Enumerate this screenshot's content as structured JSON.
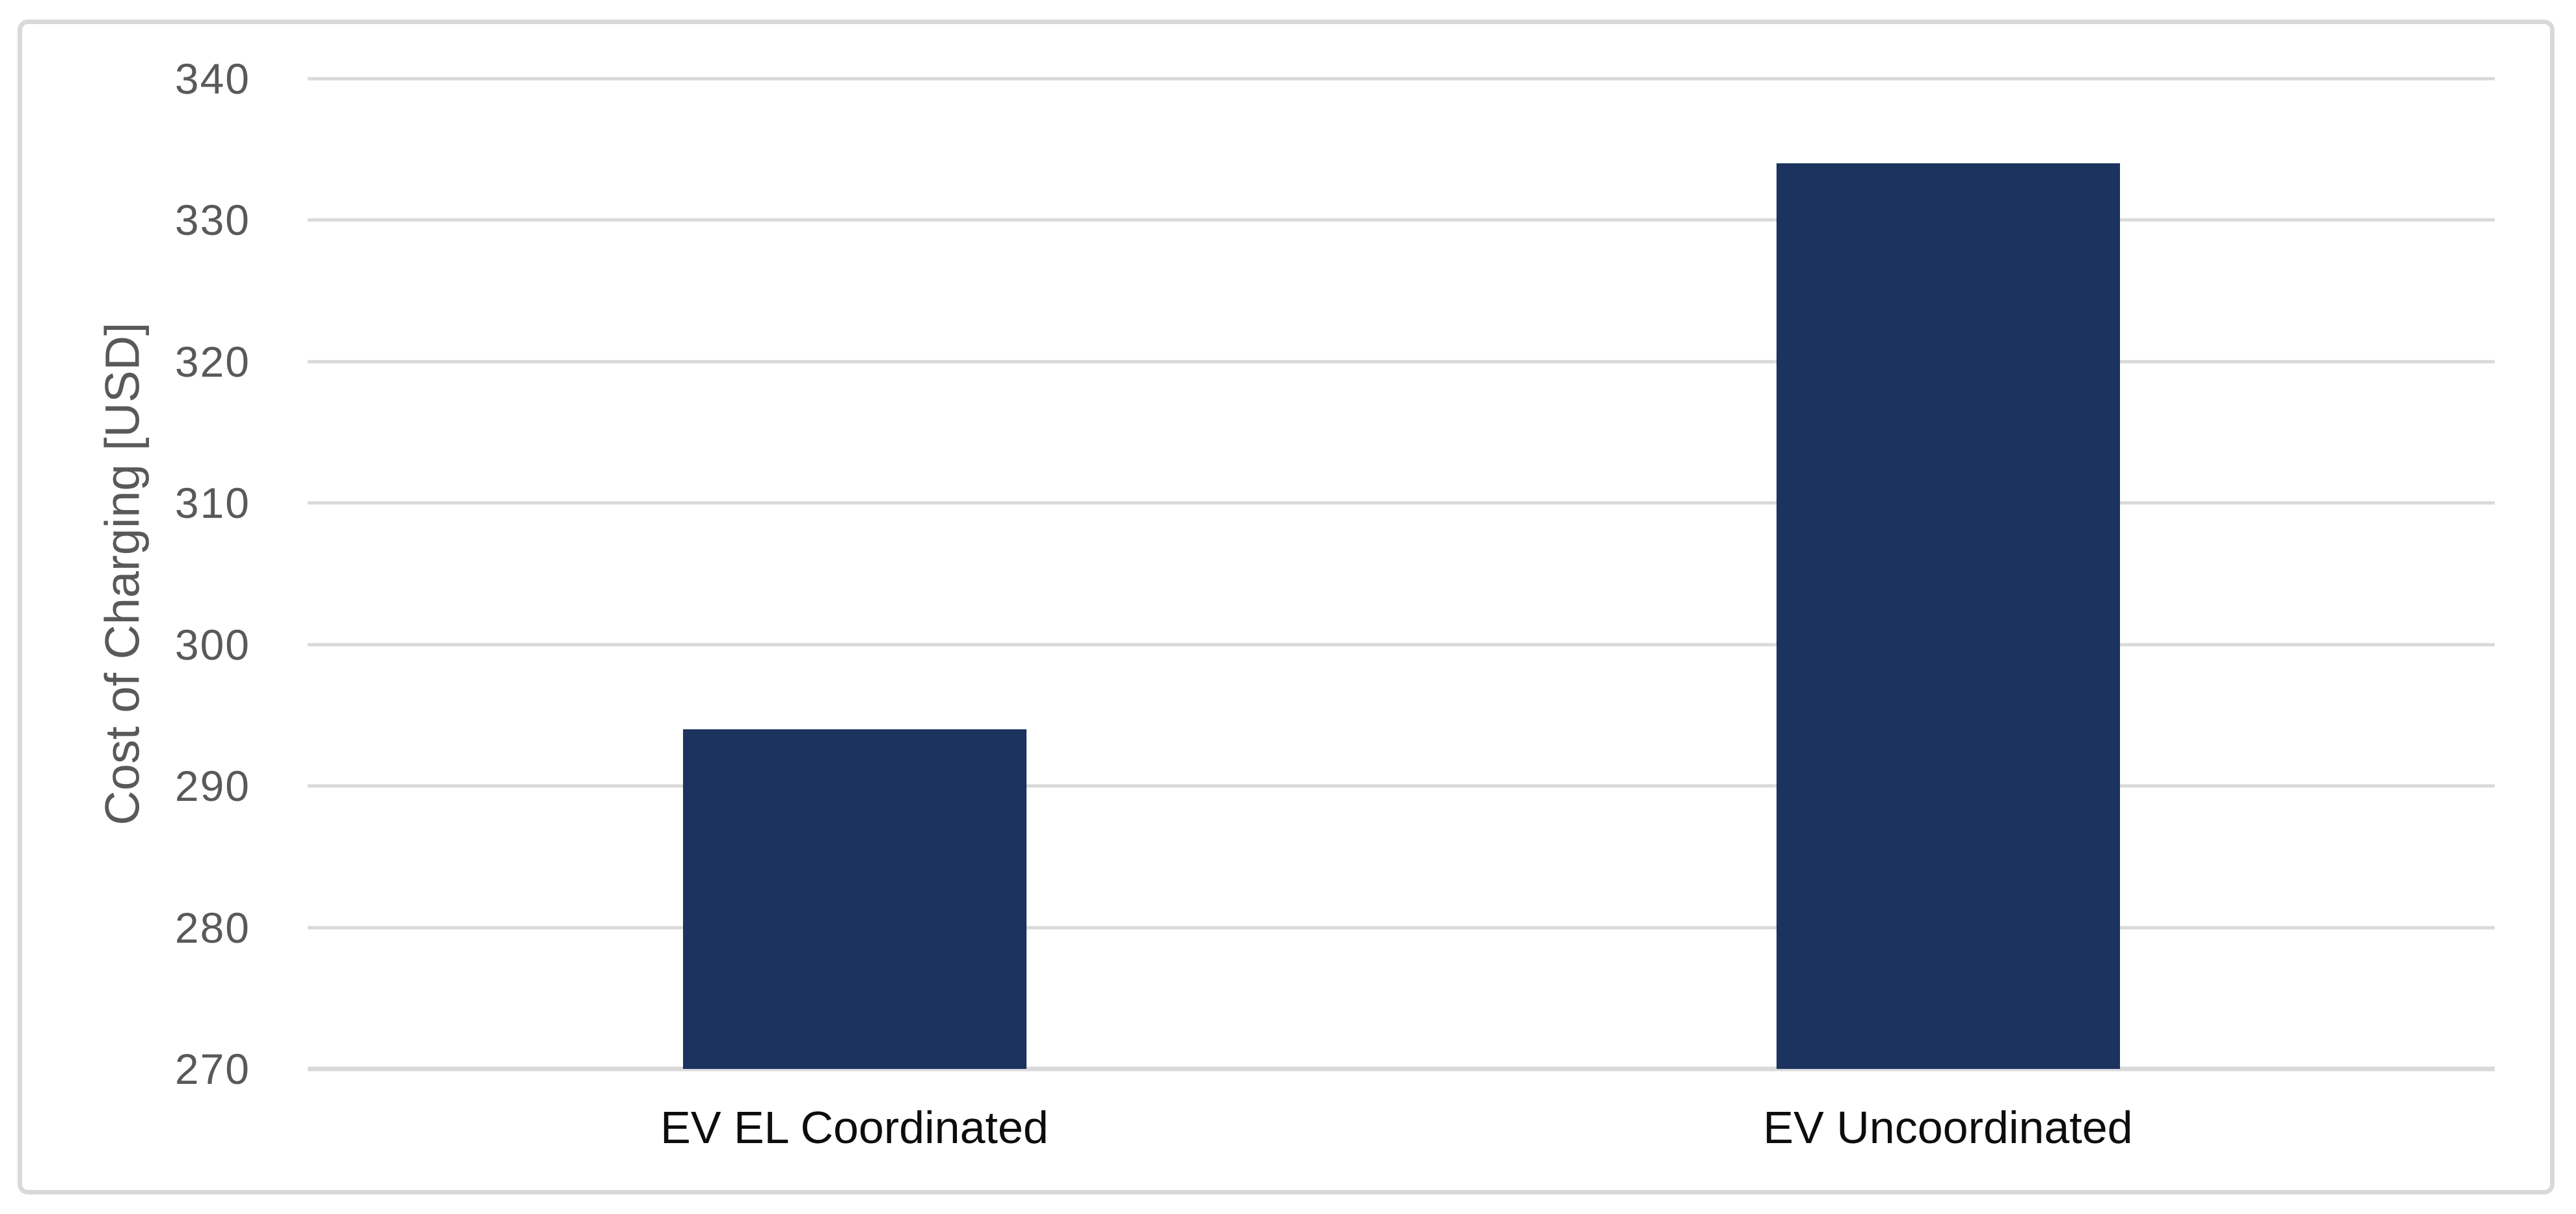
{
  "chart_data": {
    "type": "bar",
    "categories": [
      "EV EL Coordinated",
      "EV Uncoordinated"
    ],
    "values": [
      294,
      334
    ],
    "title": "",
    "xlabel": "",
    "ylabel": "Cost of Charging [USD]",
    "ylim": [
      270,
      340
    ],
    "yticks": [
      270,
      280,
      290,
      300,
      310,
      320,
      330,
      340
    ],
    "grid": "horizontal",
    "legend_position": "none",
    "colors": {
      "bar_fill": "#1c335f",
      "gridline": "#d9d9d9",
      "axis_baseline": "#d9d9d9",
      "frame_border": "#d9d9d9",
      "tick_label_text": "#595959",
      "axis_title_text": "#595959",
      "category_label_text": "#0d0d0d",
      "background": "#ffffff"
    }
  }
}
